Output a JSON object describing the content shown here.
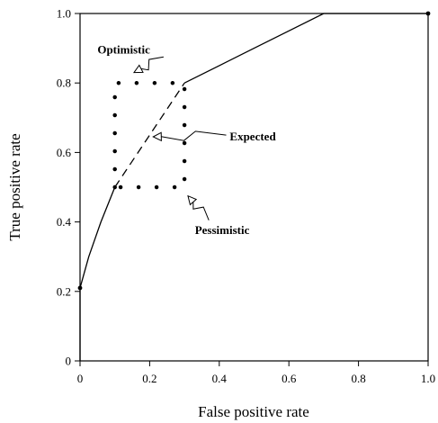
{
  "chart_data": {
    "type": "line",
    "title": "",
    "xlabel": "False positive rate",
    "ylabel": "True positive rate",
    "xlim": [
      0,
      1
    ],
    "ylim": [
      0,
      1
    ],
    "x_ticks": [
      0,
      0.2,
      0.4,
      0.6,
      0.8,
      1.0
    ],
    "x_tick_labels": [
      "0",
      "0.2",
      "0.4",
      "0.6",
      "0.8",
      "1.0"
    ],
    "y_ticks": [
      0,
      0.2,
      0.4,
      0.6,
      0.8,
      1.0
    ],
    "y_tick_labels": [
      "0",
      "0.2",
      "0.4",
      "0.6",
      "0.8",
      "1.0"
    ],
    "grid": false,
    "series": [
      {
        "style": "solid",
        "points": [
          [
            0,
            0
          ],
          [
            0,
            0.21
          ]
        ],
        "markers": [
          [
            0,
            0.21
          ]
        ]
      },
      {
        "style": "solid",
        "points": [
          [
            0,
            0.21
          ],
          [
            0.025,
            0.3
          ],
          [
            0.06,
            0.4
          ],
          [
            0.1,
            0.5
          ]
        ]
      },
      {
        "style": "dashed",
        "points": [
          [
            0.1,
            0.5
          ],
          [
            0.3,
            0.8
          ]
        ]
      },
      {
        "style": "solid",
        "points": [
          [
            0.3,
            0.8
          ],
          [
            0.4,
            0.85
          ],
          [
            0.5,
            0.9
          ],
          [
            0.6,
            0.95
          ],
          [
            0.7,
            1.0
          ],
          [
            1.0,
            1.0
          ]
        ],
        "markers": [
          [
            1.0,
            1.0
          ]
        ]
      },
      {
        "style": "dotted",
        "points": [
          [
            0.1,
            0.5
          ],
          [
            0.1,
            0.8
          ],
          [
            0.3,
            0.8
          ],
          [
            0.3,
            0.5
          ],
          [
            0.1,
            0.5
          ]
        ]
      }
    ],
    "annotations": [
      {
        "text": "Optimistic",
        "label_at": [
          0.05,
          0.885
        ],
        "label_anchor": "start",
        "arrow_from": [
          0.24,
          0.875
        ],
        "arrow_to": [
          0.155,
          0.83
        ]
      },
      {
        "text": "Expected",
        "label_at": [
          0.43,
          0.635
        ],
        "label_anchor": "start",
        "arrow_from": [
          0.42,
          0.65
        ],
        "arrow_to": [
          0.21,
          0.645
        ]
      },
      {
        "text": "Pessimistic",
        "label_at": [
          0.33,
          0.365
        ],
        "label_anchor": "start",
        "arrow_from": [
          0.37,
          0.405
        ],
        "arrow_to": [
          0.31,
          0.475
        ]
      }
    ]
  }
}
